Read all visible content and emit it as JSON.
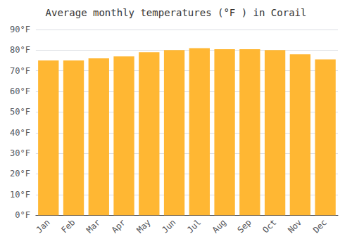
{
  "chart_data": {
    "type": "bar",
    "title": "Average monthly temperatures (°F ) in Corail",
    "categories": [
      "Jan",
      "Feb",
      "Mar",
      "Apr",
      "May",
      "Jun",
      "Jul",
      "Aug",
      "Sep",
      "Oct",
      "Nov",
      "Dec"
    ],
    "values": [
      75,
      75,
      76,
      77,
      79,
      80,
      81,
      80.5,
      80.5,
      80,
      78,
      75.5
    ],
    "color": "#FFB733",
    "ylim": [
      0,
      90
    ],
    "yticks": [
      {
        "value": 0,
        "label": "0°F"
      },
      {
        "value": 10,
        "label": "10°F"
      },
      {
        "value": 20,
        "label": "20°F"
      },
      {
        "value": 30,
        "label": "30°F"
      },
      {
        "value": 40,
        "label": "40°F"
      },
      {
        "value": 50,
        "label": "50°F"
      },
      {
        "value": 60,
        "label": "60°F"
      },
      {
        "value": 70,
        "label": "70°F"
      },
      {
        "value": 80,
        "label": "80°F"
      },
      {
        "value": 90,
        "label": "90°F"
      }
    ],
    "grid": true
  }
}
